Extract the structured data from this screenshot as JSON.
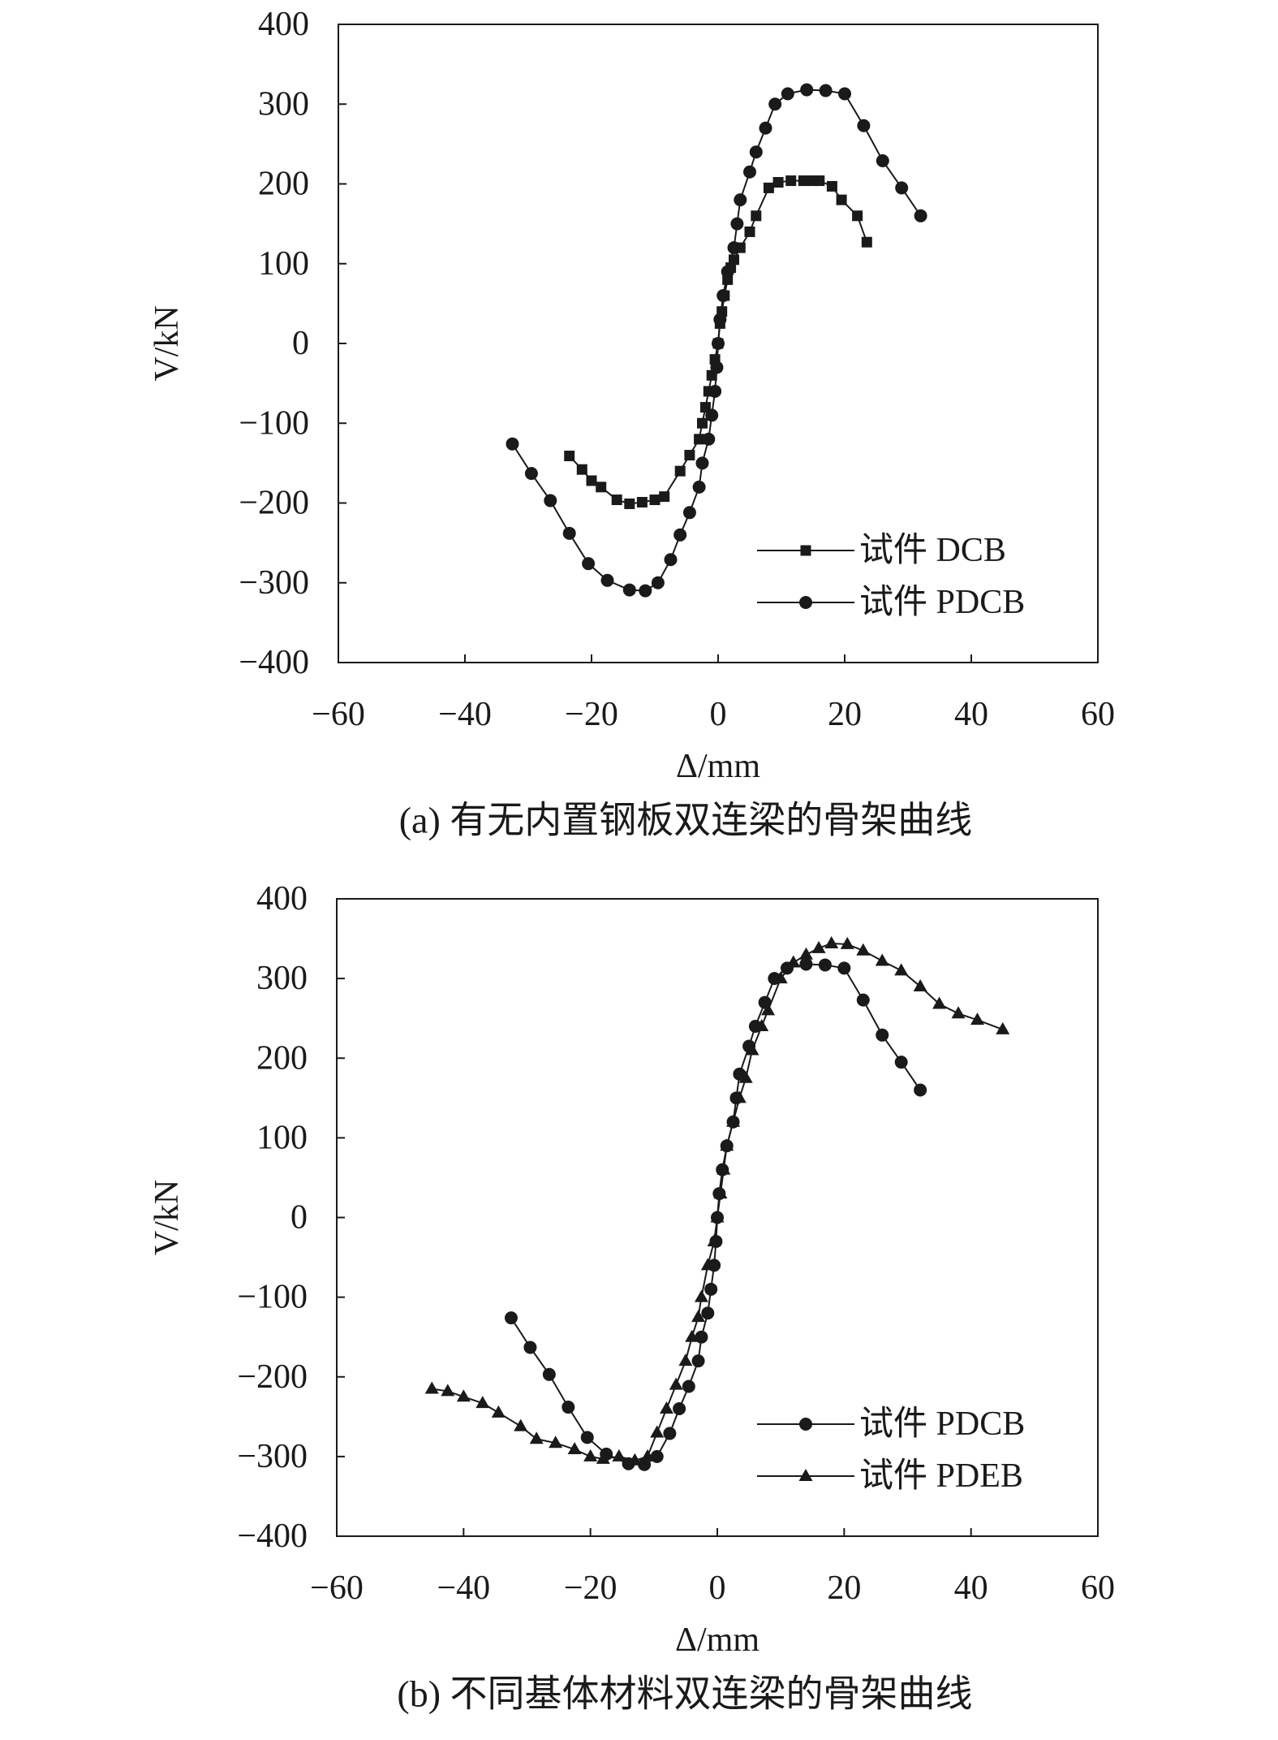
{
  "chart_data": [
    {
      "type": "line",
      "caption": "(a) 有无内置钢板双连梁的骨架曲线",
      "x_label": "Δ/mm",
      "y_label": "V/kN",
      "xlim": [
        -60,
        60
      ],
      "ylim": [
        -400,
        400
      ],
      "xticks": [
        {
          "value": -60,
          "label": "−60"
        },
        {
          "value": -40,
          "label": "−40"
        },
        {
          "value": -20,
          "label": "−20"
        },
        0,
        20,
        40,
        60
      ],
      "yticks": [
        {
          "value": -400,
          "label": "−400"
        },
        {
          "value": -300,
          "label": "−300"
        },
        {
          "value": -200,
          "label": "−200"
        },
        {
          "value": -100,
          "label": "−100"
        },
        0,
        100,
        200,
        300,
        400
      ],
      "legend": "lower right",
      "series": [
        {
          "name": "试件 DCB",
          "color": "#1a1a1a",
          "marker": "square",
          "x": [
            -23.5,
            -21.5,
            -20,
            -18.5,
            -16,
            -14,
            -12,
            -10,
            -8.5,
            -6,
            -4.5,
            -3,
            -2.5,
            -2,
            -1.5,
            -1,
            -0.5,
            0,
            0.3,
            0.6,
            1,
            1.5,
            2,
            2.5,
            3.5,
            5,
            6,
            8,
            9.5,
            11.5,
            13.5,
            15,
            16,
            18,
            19.5,
            22,
            23.5
          ],
          "values": [
            -141,
            -158,
            -172,
            -180,
            -196,
            -201,
            -199,
            -196,
            -192,
            -160,
            -140,
            -120,
            -100,
            -80,
            -60,
            -40,
            -20,
            0,
            25,
            40,
            60,
            80,
            95,
            105,
            120,
            140,
            160,
            195,
            202,
            204,
            204,
            204,
            204,
            197,
            180,
            160,
            127
          ]
        },
        {
          "name": "试件 PDCB",
          "color": "#1a1a1a",
          "marker": "circle",
          "x": [
            -32.5,
            -29.5,
            -26.5,
            -23.5,
            -20.5,
            -17.5,
            -14,
            -11.5,
            -9.5,
            -7.5,
            -6,
            -4.5,
            -3,
            -2.5,
            -1.5,
            -1,
            -0.5,
            -0.2,
            0,
            0.3,
            0.8,
            1.5,
            2.5,
            3,
            3.5,
            5,
            6,
            7.5,
            9,
            11,
            14,
            17,
            20,
            23,
            26,
            29,
            32
          ],
          "values": [
            -126,
            -163,
            -197,
            -238,
            -276,
            -297,
            -309,
            -310,
            -300,
            -271,
            -240,
            -212,
            -180,
            -150,
            -120,
            -90,
            -60,
            -30,
            0,
            30,
            60,
            90,
            120,
            150,
            180,
            215,
            240,
            270,
            300,
            313,
            318,
            317,
            313,
            273,
            229,
            195,
            160
          ]
        }
      ]
    },
    {
      "type": "line",
      "caption": "(b) 不同基体材料双连梁的骨架曲线",
      "x_label": "Δ/mm",
      "y_label": "V/kN",
      "xlim": [
        -60,
        60
      ],
      "ylim": [
        -400,
        400
      ],
      "xticks": [
        {
          "value": -60,
          "label": "−60"
        },
        {
          "value": -40,
          "label": "−40"
        },
        {
          "value": -20,
          "label": "−20"
        },
        0,
        20,
        40,
        60
      ],
      "yticks": [
        {
          "value": -400,
          "label": "−400"
        },
        {
          "value": -300,
          "label": "−300"
        },
        {
          "value": -200,
          "label": "−200"
        },
        {
          "value": -100,
          "label": "−100"
        },
        0,
        100,
        200,
        300,
        400
      ],
      "legend": "lower right",
      "series": [
        {
          "name": "试件 PDCB",
          "color": "#1a1a1a",
          "marker": "circle",
          "x": [
            -32.5,
            -29.5,
            -26.5,
            -23.5,
            -20.5,
            -17.5,
            -14,
            -11.5,
            -9.5,
            -7.5,
            -6,
            -4.5,
            -3,
            -2.5,
            -1.5,
            -1,
            -0.5,
            -0.2,
            0,
            0.3,
            0.8,
            1.5,
            2.5,
            3,
            3.5,
            5,
            6,
            7.5,
            9,
            11,
            14,
            17,
            20,
            23,
            26,
            29,
            32
          ],
          "values": [
            -126,
            -163,
            -197,
            -238,
            -276,
            -297,
            -309,
            -310,
            -300,
            -271,
            -240,
            -212,
            -180,
            -150,
            -120,
            -90,
            -60,
            -30,
            0,
            30,
            60,
            90,
            120,
            150,
            180,
            215,
            240,
            270,
            300,
            313,
            318,
            317,
            313,
            273,
            229,
            195,
            160
          ]
        },
        {
          "name": "试件 PDEB",
          "color": "#1a1a1a",
          "marker": "triangle",
          "x": [
            -45,
            -42.5,
            -40,
            -37,
            -34.5,
            -31,
            -28.5,
            -25.5,
            -22.5,
            -20,
            -18,
            -15.5,
            -13,
            -11,
            -9.5,
            -8,
            -6.5,
            -5,
            -4,
            -3,
            -2.5,
            -1.5,
            -0.5,
            0,
            0.5,
            1,
            1.5,
            2.5,
            3.5,
            4.5,
            5.5,
            7,
            8,
            10,
            12,
            14,
            16,
            18,
            20.5,
            23,
            26,
            29,
            32,
            35,
            38,
            41,
            45
          ],
          "values": [
            -215,
            -218,
            -225,
            -233,
            -245,
            -262,
            -278,
            -283,
            -291,
            -300,
            -303,
            -300,
            -305,
            -300,
            -270,
            -240,
            -210,
            -180,
            -150,
            -125,
            -100,
            -60,
            -30,
            0,
            30,
            60,
            90,
            120,
            150,
            175,
            210,
            240,
            260,
            300,
            320,
            330,
            338,
            344,
            343,
            335,
            322,
            310,
            290,
            268,
            256,
            248,
            236
          ]
        }
      ]
    }
  ]
}
